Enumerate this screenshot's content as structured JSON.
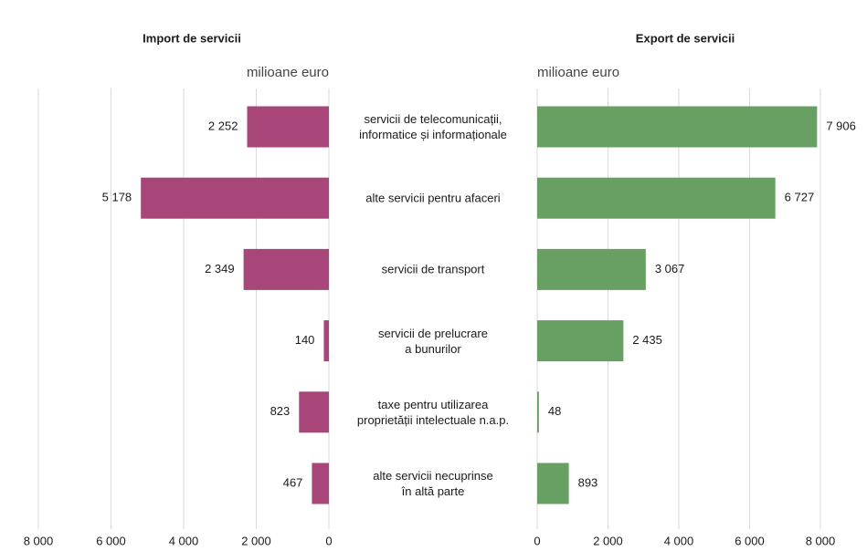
{
  "chart_data": [
    {
      "type": "bar",
      "orientation": "horizontal",
      "title": "Import de servicii",
      "xlabel": "milioane euro",
      "categories": [
        "servicii de telecomunicații,\ninformatice și informaționale",
        "alte servicii pentru afaceri",
        "servicii de transport",
        "servicii de prelucrare\na bunurilor",
        "taxe pentru utilizarea\nproprietății intelectuale n.a.p.",
        "alte servicii necuprinse\nîn altă parte"
      ],
      "values": [
        2252,
        5178,
        2349,
        140,
        823,
        467
      ],
      "value_labels": [
        "2 252",
        "5 178",
        "2 349",
        "140",
        "823",
        "467"
      ],
      "color": "#a8467a",
      "xlim": [
        8000,
        0
      ],
      "xticks": [
        {
          "value": 8000,
          "label": "8 000"
        },
        {
          "value": 6000,
          "label": "6 000"
        },
        {
          "value": 4000,
          "label": "4 000"
        },
        {
          "value": 2000,
          "label": "2 000"
        },
        0
      ],
      "grid": true
    },
    {
      "type": "bar",
      "orientation": "horizontal",
      "title": "Export de servicii",
      "xlabel": "milioane euro",
      "values": [
        7906,
        6727,
        3067,
        2435,
        48,
        893
      ],
      "value_labels": [
        "7 906",
        "6 727",
        "3 067",
        "2 435",
        "48",
        "893"
      ],
      "color": "#67a062",
      "xlim": [
        0,
        8000
      ],
      "xticks": [
        0,
        {
          "value": 2000,
          "label": "2 000"
        },
        {
          "value": 4000,
          "label": "4 000"
        },
        {
          "value": 6000,
          "label": "6 000"
        },
        {
          "value": 8000,
          "label": "8 000"
        }
      ],
      "grid": true
    }
  ]
}
